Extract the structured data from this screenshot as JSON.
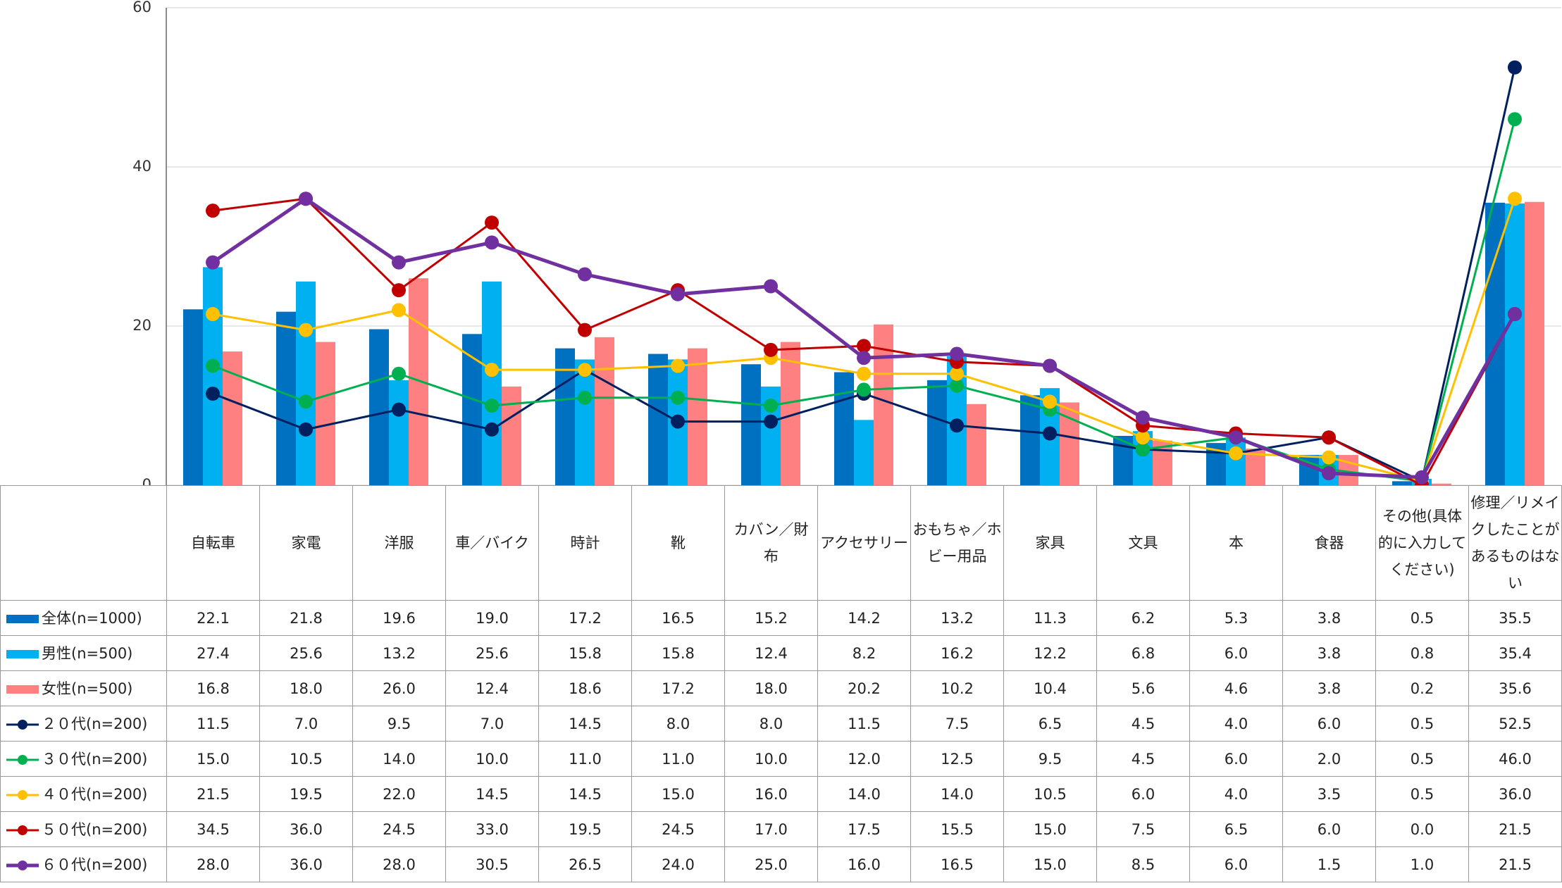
{
  "chart_data": {
    "type": "bar",
    "categories": [
      "自転車",
      "家電",
      "洋服",
      "車／バイク",
      "時計",
      "靴",
      "カバン／財布",
      "アクセサリー",
      "おもちゃ／ホビー用品",
      "家具",
      "文具",
      "本",
      "食器",
      "その他(具体的に入力してください)",
      "修理／リメイクしたことがあるものはない"
    ],
    "ylim": [
      0,
      60
    ],
    "yticks": [
      0,
      20,
      40,
      60
    ],
    "grid": true,
    "series": [
      {
        "name": "全体(n=1000)",
        "type": "bar",
        "color": "#0070c0",
        "values": [
          22.1,
          21.8,
          19.6,
          19.0,
          17.2,
          16.5,
          15.2,
          14.2,
          13.2,
          11.3,
          6.2,
          5.3,
          3.8,
          0.5,
          35.5
        ],
        "value_labels": [
          "22.1",
          "21.8",
          "19.6",
          "19.0",
          "17.2",
          "16.5",
          "15.2",
          "14.2",
          "13.2",
          "11.3",
          "6.2",
          "5.3",
          "3.8",
          "0.5",
          "35.5"
        ]
      },
      {
        "name": "男性(n=500)",
        "type": "bar",
        "color": "#00b0f0",
        "values": [
          27.4,
          25.6,
          13.2,
          25.6,
          15.8,
          15.8,
          12.4,
          8.2,
          16.2,
          12.2,
          6.8,
          6.0,
          3.8,
          0.8,
          35.4
        ],
        "value_labels": [
          "27.4",
          "25.6",
          "13.2",
          "25.6",
          "15.8",
          "15.8",
          "12.4",
          "8.2",
          "16.2",
          "12.2",
          "6.8",
          "6.0",
          "3.8",
          "0.8",
          "35.4"
        ]
      },
      {
        "name": "女性(n=500)",
        "type": "bar",
        "color": "#ff8080",
        "values": [
          16.8,
          18.0,
          26.0,
          12.4,
          18.6,
          17.2,
          18.0,
          20.2,
          10.2,
          10.4,
          5.6,
          4.6,
          3.8,
          0.2,
          35.6
        ],
        "value_labels": [
          "16.8",
          "18.0",
          "26.0",
          "12.4",
          "18.6",
          "17.2",
          "18.0",
          "20.2",
          "10.2",
          "10.4",
          "5.6",
          "4.6",
          "3.8",
          "0.2",
          "35.6"
        ]
      },
      {
        "name": "２０代(n=200)",
        "type": "line",
        "color": "#002060",
        "values": [
          11.5,
          7.0,
          9.5,
          7.0,
          14.5,
          8.0,
          8.0,
          11.5,
          7.5,
          6.5,
          4.5,
          4.0,
          6.0,
          0.5,
          52.5
        ],
        "value_labels": [
          "11.5",
          "7.0",
          "9.5",
          "7.0",
          "14.5",
          "8.0",
          "8.0",
          "11.5",
          "7.5",
          "6.5",
          "4.5",
          "4.0",
          "6.0",
          "0.5",
          "52.5"
        ]
      },
      {
        "name": "３０代(n=200)",
        "type": "line",
        "color": "#00b050",
        "values": [
          15.0,
          10.5,
          14.0,
          10.0,
          11.0,
          11.0,
          10.0,
          12.0,
          12.5,
          9.5,
          4.5,
          6.0,
          2.0,
          0.5,
          46.0
        ],
        "value_labels": [
          "15.0",
          "10.5",
          "14.0",
          "10.0",
          "11.0",
          "11.0",
          "10.0",
          "12.0",
          "12.5",
          "9.5",
          "4.5",
          "6.0",
          "2.0",
          "0.5",
          "46.0"
        ]
      },
      {
        "name": "４０代(n=200)",
        "type": "line",
        "color": "#ffc000",
        "values": [
          21.5,
          19.5,
          22.0,
          14.5,
          14.5,
          15.0,
          16.0,
          14.0,
          14.0,
          10.5,
          6.0,
          4.0,
          3.5,
          0.5,
          36.0
        ],
        "value_labels": [
          "21.5",
          "19.5",
          "22.0",
          "14.5",
          "14.5",
          "15.0",
          "16.0",
          "14.0",
          "14.0",
          "10.5",
          "6.0",
          "4.0",
          "3.5",
          "0.5",
          "36.0"
        ]
      },
      {
        "name": "５０代(n=200)",
        "type": "line",
        "color": "#c00000",
        "values": [
          34.5,
          36.0,
          24.5,
          33.0,
          19.5,
          24.5,
          17.0,
          17.5,
          15.5,
          15.0,
          7.5,
          6.5,
          6.0,
          0.0,
          21.5
        ],
        "value_labels": [
          "34.5",
          "36.0",
          "24.5",
          "33.0",
          "19.5",
          "24.5",
          "17.0",
          "17.5",
          "15.5",
          "15.0",
          "7.5",
          "6.5",
          "6.0",
          "0.0",
          "21.5"
        ]
      },
      {
        "name": "６０代(n=200)",
        "type": "line",
        "color": "#7030a0",
        "values": [
          28.0,
          36.0,
          28.0,
          30.5,
          26.5,
          24.0,
          25.0,
          16.0,
          16.5,
          15.0,
          8.5,
          6.0,
          1.5,
          1.0,
          21.5
        ],
        "value_labels": [
          "28.0",
          "36.0",
          "28.0",
          "30.5",
          "26.5",
          "24.0",
          "25.0",
          "16.0",
          "16.5",
          "15.0",
          "8.5",
          "6.0",
          "1.5",
          "1.0",
          "21.5"
        ]
      }
    ]
  }
}
